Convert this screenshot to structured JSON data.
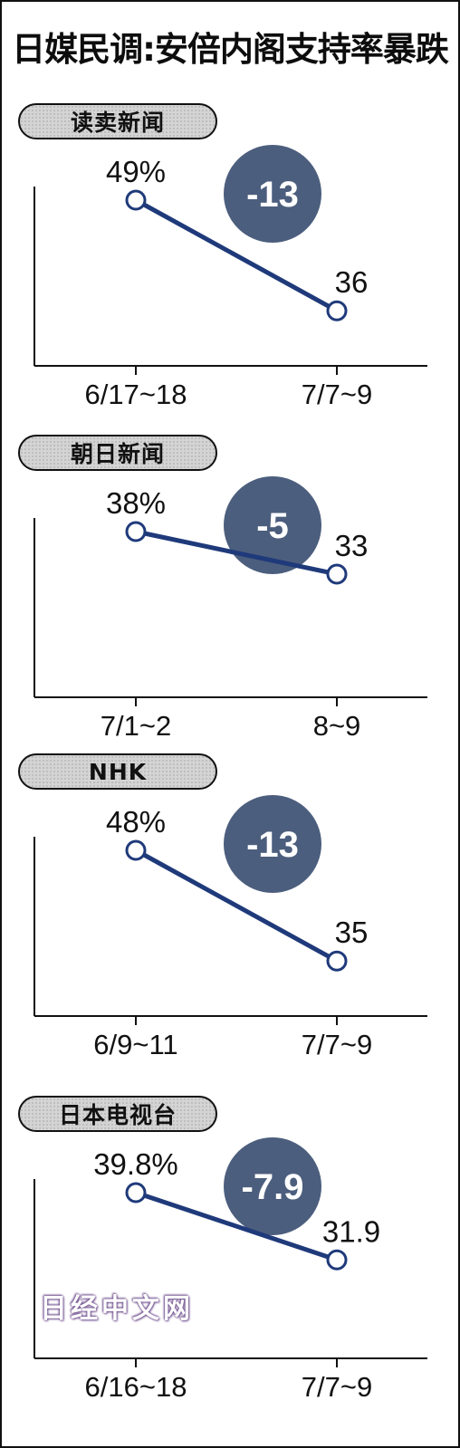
{
  "title": "日媒民调:安倍内阁支持率暴跌",
  "watermark": "日经中文网",
  "colors": {
    "line": "#1f3a7a",
    "bubble": "#4c5e7d",
    "pill_fill": "#d4d4d4",
    "axis": "#111111"
  },
  "chart_data": [
    {
      "type": "line",
      "source": "读卖新闻",
      "categories": [
        "6/17~18",
        "7/7~9"
      ],
      "values": [
        49,
        36
      ],
      "point_labels": [
        "49%",
        "36"
      ],
      "change_label": "-13"
    },
    {
      "type": "line",
      "source": "朝日新闻",
      "categories": [
        "7/1~2",
        "8~9"
      ],
      "values": [
        38,
        33
      ],
      "point_labels": [
        "38%",
        "33"
      ],
      "change_label": "-5"
    },
    {
      "type": "line",
      "source": "NHK",
      "categories": [
        "6/9~11",
        "7/7~9"
      ],
      "values": [
        48,
        35
      ],
      "point_labels": [
        "48%",
        "35"
      ],
      "change_label": "-13"
    },
    {
      "type": "line",
      "source": "日本电视台",
      "categories": [
        "6/16~18",
        "7/7~9"
      ],
      "values": [
        39.8,
        31.9
      ],
      "point_labels": [
        "39.8%",
        "31.9"
      ],
      "change_label": "-7.9"
    }
  ]
}
